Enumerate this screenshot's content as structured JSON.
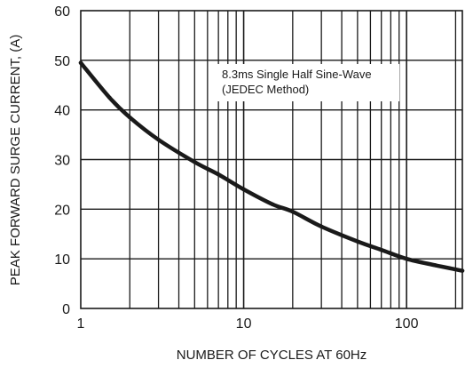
{
  "chart_data": {
    "type": "line",
    "xlabel": "NUMBER OF CYCLES AT 60Hz",
    "ylabel": "PEAK FORWARD SURGE CURRENT, (A)",
    "x_scale": "log",
    "xlim": [
      1,
      220
    ],
    "ylim": [
      0,
      60
    ],
    "x_ticks": [
      1,
      10,
      100
    ],
    "x_tick_labels": [
      "1",
      "10",
      "100"
    ],
    "y_ticks": [
      0,
      10,
      20,
      30,
      40,
      50,
      60
    ],
    "y_tick_labels": [
      "0",
      "10",
      "20",
      "30",
      "40",
      "50",
      "60"
    ],
    "grid": true,
    "annotation": {
      "line1": "8.3ms Single Half Sine-Wave",
      "line2": "(JEDEC Method)"
    },
    "series": [
      {
        "x": [
          1,
          1.5,
          2,
          3,
          5,
          7,
          10,
          15,
          20,
          30,
          50,
          70,
          100,
          150,
          220
        ],
        "y": [
          49.5,
          42.5,
          38.5,
          34,
          29.5,
          27,
          24,
          21,
          19.5,
          16.5,
          13.5,
          11.8,
          10,
          8.7,
          7.6
        ]
      }
    ],
    "colors": {
      "line": "#1a1a1a",
      "grid": "#1a1a1a",
      "background": "#ffffff"
    }
  }
}
